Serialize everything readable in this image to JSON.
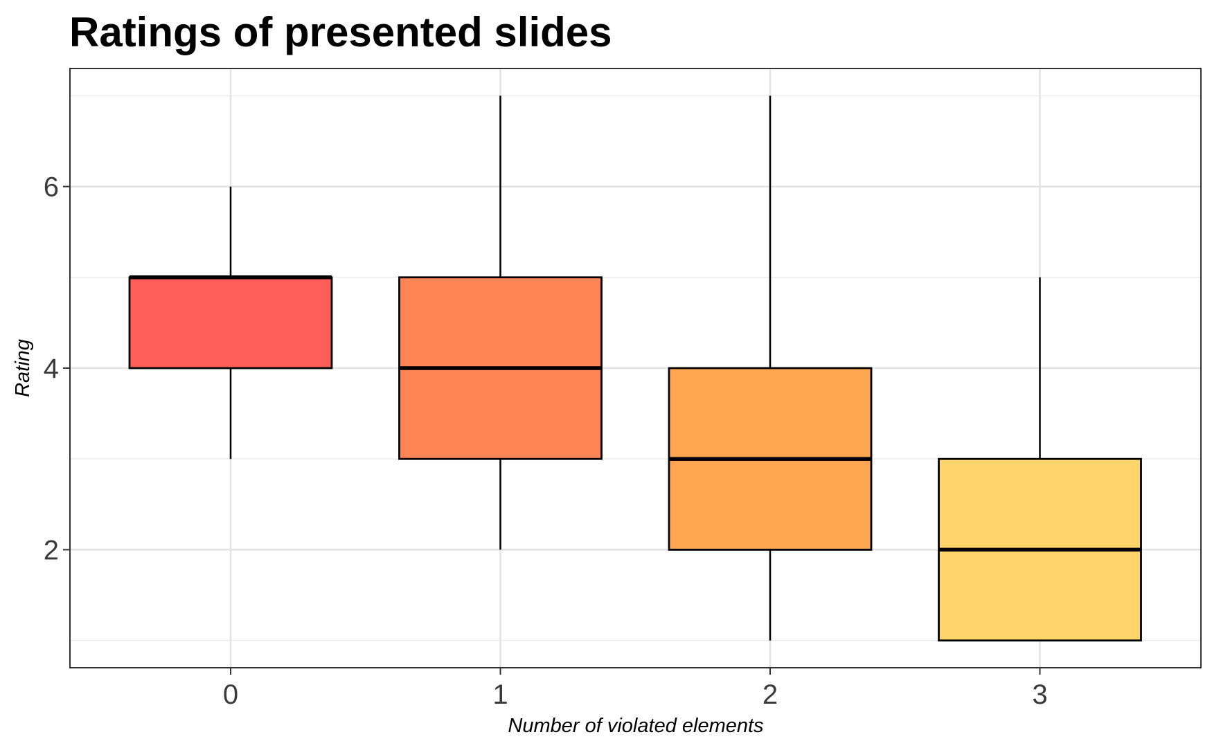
{
  "chart_data": {
    "type": "box",
    "title": "Ratings of presented slides",
    "xlabel": "Number of violated elements",
    "ylabel": "Rating",
    "categories": [
      "0",
      "1",
      "2",
      "3"
    ],
    "boxes": [
      {
        "category": "0",
        "min": 3,
        "q1": 4,
        "median": 5,
        "q3": 5,
        "max": 6,
        "color": "#FF5F58"
      },
      {
        "category": "1",
        "min": 2,
        "q1": 3,
        "median": 4,
        "q3": 5,
        "max": 7,
        "color": "#FF8555"
      },
      {
        "category": "2",
        "min": 1,
        "q1": 2,
        "median": 3,
        "q3": 4,
        "max": 7,
        "color": "#FFA653"
      },
      {
        "category": "3",
        "min": 1,
        "q1": 1,
        "median": 2,
        "q3": 3,
        "max": 5,
        "color": "#FFD56B"
      }
    ],
    "y_ticks": [
      2,
      4,
      6
    ],
    "y_minor_gridlines": [
      1,
      3,
      5,
      7
    ],
    "ylim": [
      0.7,
      7.3
    ],
    "grid": true,
    "legend": "none"
  }
}
